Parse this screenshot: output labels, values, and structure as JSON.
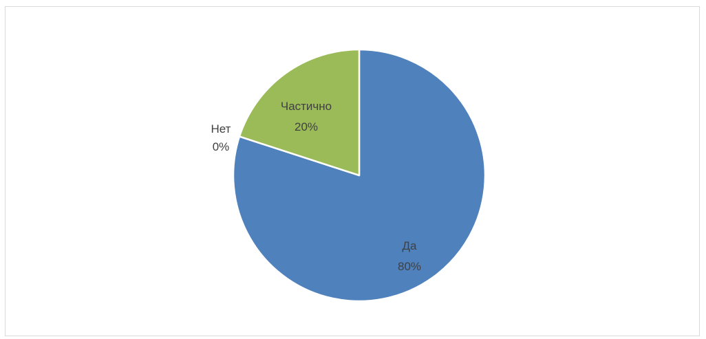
{
  "chart_data": {
    "type": "pie",
    "title": "",
    "categories": [
      "Да",
      "Нет",
      "Частично"
    ],
    "values": [
      80,
      0,
      20
    ],
    "value_labels": [
      "80%",
      "0%",
      "20%"
    ],
    "colors": [
      "#4f81bd",
      "#c0504d",
      "#9bbb59"
    ],
    "start_angle_deg": 0,
    "direction": "clockwise",
    "legend": "none",
    "data_labels": "category and percentage"
  }
}
